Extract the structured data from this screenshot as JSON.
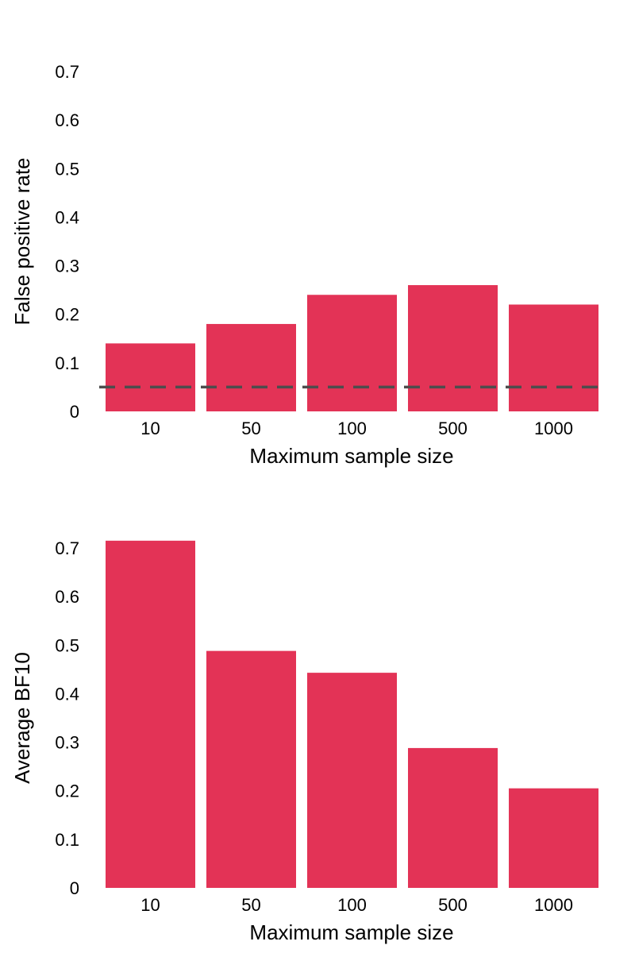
{
  "chart_data": [
    {
      "type": "bar",
      "categories": [
        "10",
        "50",
        "100",
        "500",
        "1000"
      ],
      "values": [
        0.14,
        0.18,
        0.24,
        0.26,
        0.22
      ],
      "xlabel": "Maximum sample size",
      "ylabel": "False positive rate",
      "ylim": [
        0,
        0.7
      ],
      "yticks": [
        0,
        0.1,
        0.2,
        0.3,
        0.4,
        0.5,
        0.6,
        0.7
      ],
      "ytick_labels": [
        "0",
        "0.1",
        "0.2",
        "0.3",
        "0.4",
        "0.5",
        "0.6",
        "0.7"
      ],
      "reference_line": {
        "y": 0.05,
        "style": "dashed",
        "color": "#4d4d4d"
      },
      "bar_color": "#e33356",
      "grid": false,
      "legend": "none"
    },
    {
      "type": "bar",
      "categories": [
        "10",
        "50",
        "100",
        "500",
        "1000"
      ],
      "values": [
        0.715,
        0.488,
        0.443,
        0.288,
        0.205
      ],
      "xlabel": "Maximum sample size",
      "ylabel": "Average BF10",
      "ylim": [
        0,
        0.7
      ],
      "yticks": [
        0,
        0.1,
        0.2,
        0.3,
        0.4,
        0.5,
        0.6,
        0.7
      ],
      "ytick_labels": [
        "0",
        "0.1",
        "0.2",
        "0.3",
        "0.4",
        "0.5",
        "0.6",
        "0.7"
      ],
      "bar_color": "#e33356",
      "grid": false,
      "legend": "none"
    }
  ]
}
